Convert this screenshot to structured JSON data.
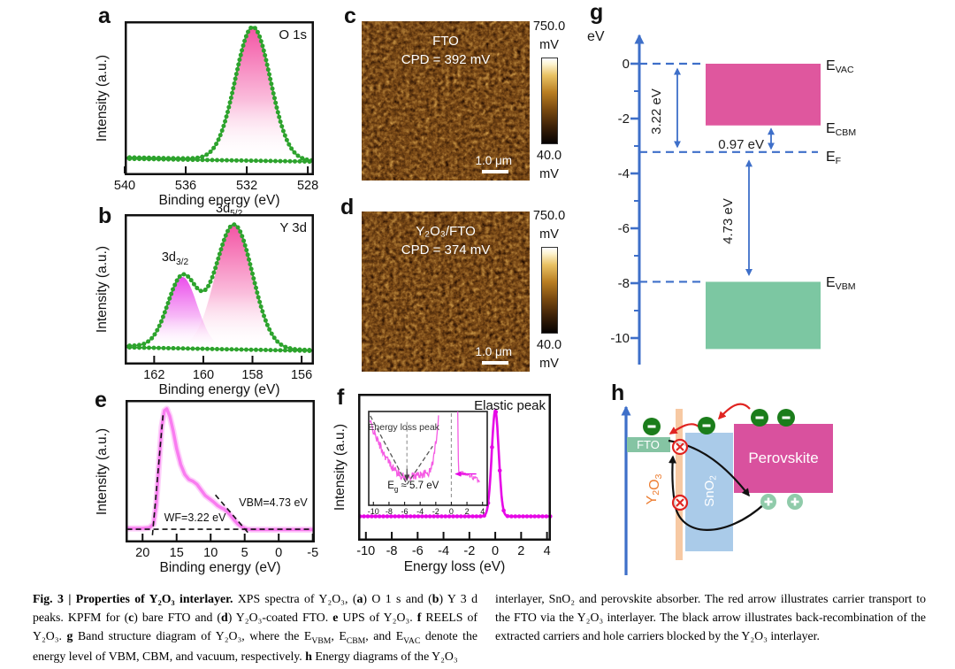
{
  "panels": {
    "a": "a",
    "b": "b",
    "c": "c",
    "d": "d",
    "e": "e",
    "f": "f",
    "g": "g",
    "h": "h"
  },
  "colors": {
    "xps_green": "#2da32d",
    "pink": "#f2459c",
    "magenta": "#e93fe9",
    "ups_pink": "#f97cf0",
    "reels_magenta": "#e607e6",
    "axis_blue": "#3e6fc9",
    "band_pink": "#df579e",
    "band_green": "#7cc7a2",
    "electron_green": "#1b7d1b",
    "hole_green": "#90cbaa",
    "sno2_blue": "#aacbe9",
    "y2o3_strip": "#f7c9a3",
    "y2o3_orange": "#ed7d31",
    "perovskite_pink": "#d9519e",
    "fto_green": "#85c4a3",
    "red": "#e02421",
    "ink": "#111111"
  },
  "chart_data": [
    {
      "id": "a",
      "type": "area",
      "panel": "a",
      "title": "O 1s",
      "xlabel": "Binding energy (eV)",
      "ylabel": "Intensity (a.u.)",
      "xticks": [
        540,
        536,
        532,
        528
      ],
      "x_range": [
        540,
        527.6
      ],
      "baseline": [
        0.055,
        0.028
      ],
      "peaks": [
        {
          "center": 531.6,
          "sigma": 1.15,
          "amp": 1.0,
          "fill": "pink"
        }
      ]
    },
    {
      "id": "b",
      "type": "area",
      "panel": "b",
      "title": "Y 3d",
      "xlabel": "Binding energy (eV)",
      "ylabel": "Intensity (a.u.)",
      "xticks": [
        162,
        160,
        158,
        156
      ],
      "x_range": [
        163.2,
        155.5
      ],
      "baseline": [
        0.065,
        0.03
      ],
      "peaks": [
        {
          "center": 160.85,
          "sigma": 0.6,
          "amp": 0.55,
          "fill": "magenta",
          "label": [
            {
              "t": "3d"
            },
            {
              "t": "3/2",
              "s": 1
            }
          ],
          "label_x": 161.15,
          "label_v": 0.7
        },
        {
          "center": 158.75,
          "sigma": 0.75,
          "amp": 0.97,
          "fill": "pink",
          "label": [
            {
              "t": "3d"
            },
            {
              "t": "5/2",
              "s": 1
            }
          ],
          "label_x": 158.95,
          "label_v": 1.08
        }
      ]
    },
    {
      "id": "e",
      "type": "line",
      "panel": "e",
      "xlabel": "Binding energy (eV)",
      "ylabel": "Intensity (a.u.)",
      "xticks": [
        20,
        15,
        10,
        5,
        0,
        -5
      ],
      "x_range": [
        22.5,
        -5.3
      ],
      "curve": [
        [
          22.5,
          0.035
        ],
        [
          20,
          0.035
        ],
        [
          19,
          0.04
        ],
        [
          18.4,
          0.07
        ],
        [
          18.0,
          0.22
        ],
        [
          17.6,
          0.55
        ],
        [
          17.2,
          0.85
        ],
        [
          16.8,
          0.985
        ],
        [
          16.45,
          1.0
        ],
        [
          16.0,
          0.94
        ],
        [
          15.5,
          0.82
        ],
        [
          15.0,
          0.68
        ],
        [
          14.4,
          0.55
        ],
        [
          13.8,
          0.47
        ],
        [
          13.2,
          0.43
        ],
        [
          12.6,
          0.415
        ],
        [
          12.0,
          0.39
        ],
        [
          11.4,
          0.345
        ],
        [
          10.8,
          0.3
        ],
        [
          10.2,
          0.275
        ],
        [
          9.6,
          0.25
        ],
        [
          9.0,
          0.22
        ],
        [
          8.4,
          0.2
        ],
        [
          8.0,
          0.19
        ],
        [
          7.5,
          0.165
        ],
        [
          7.0,
          0.135
        ],
        [
          6.5,
          0.1
        ],
        [
          6.0,
          0.07
        ],
        [
          5.5,
          0.05
        ],
        [
          5.0,
          0.035
        ],
        [
          4.6,
          0.028
        ],
        [
          4.0,
          0.025
        ],
        [
          2.0,
          0.025
        ],
        [
          0.0,
          0.025
        ],
        [
          -2.0,
          0.025
        ],
        [
          -5.3,
          0.025
        ]
      ],
      "dashes": [
        [
          [
            22.3,
            0.028
          ],
          [
            -5.2,
            0.028
          ]
        ],
        [
          [
            18.55,
            -0.02
          ],
          [
            17.0,
            0.95
          ]
        ],
        [
          [
            9.3,
            0.305
          ],
          [
            4.5,
            0.0
          ]
        ]
      ],
      "annotations": [
        {
          "text": "WF=3.22 eV",
          "x": 12.3,
          "v": 0.075
        },
        {
          "text": "VBM=4.73 eV",
          "x": 0.8,
          "v": 0.19
        }
      ]
    },
    {
      "id": "f",
      "type": "line",
      "panel": "f",
      "title": "Elastic peak",
      "xlabel": "Energy loss (eV)",
      "ylabel": "Intensity (a.u.)",
      "xticks": [
        -10,
        -8,
        -6,
        -4,
        -2,
        0,
        2,
        4
      ],
      "x_range": [
        -10.6,
        4.3
      ],
      "peak": {
        "center": 0,
        "sigma": 0.27,
        "amp": 0.8,
        "base": 0.13
      },
      "inset": {
        "xticks": [
          -10,
          -8,
          -6,
          -4,
          -2,
          0,
          2,
          4
        ],
        "x_range": [
          -10.6,
          4.6
        ],
        "label": "Energy loss peak",
        "eg_segments": [
          {
            "t": "E"
          },
          {
            "t": "g",
            "s": 1
          },
          {
            "t": " ≈ 5.7 eV"
          }
        ],
        "eg_x": -5.7
      }
    }
  ],
  "kpfm": {
    "c": {
      "panel": "c",
      "sample": "FTO",
      "cpd": "CPD = 392 mV",
      "scalebar": "1.0 μm",
      "cbar_max": "750.0",
      "cbar_min": "40.0",
      "unit": "mV"
    },
    "d": {
      "panel": "d",
      "sample": "Y₂O₃/FTO",
      "cpd": "CPD = 374 mV",
      "scalebar": "1.0 μm",
      "cbar_max": "750.0",
      "cbar_min": "40.0",
      "unit": "mV"
    }
  },
  "band_diagram": {
    "panel": "g",
    "unit": "eV",
    "yticks": [
      0,
      -2,
      -4,
      -6,
      -8,
      -10
    ],
    "levels": {
      "evac": 0,
      "ecbm": -2.25,
      "ef": -3.22,
      "evbm": -7.95,
      "vb_bottom": -10.4
    },
    "gaps": {
      "wf": "3.22 eV",
      "cbm": "0.97 eV",
      "vbm": "4.73 eV"
    },
    "labels": {
      "evac": [
        {
          "t": "E"
        },
        {
          "t": "VAC",
          "s": 1
        }
      ],
      "ecbm": [
        {
          "t": "E"
        },
        {
          "t": "CBM",
          "s": 1
        }
      ],
      "ef": [
        {
          "t": "E"
        },
        {
          "t": "F",
          "s": 1
        }
      ],
      "evbm": [
        {
          "t": "E"
        },
        {
          "t": "VBM",
          "s": 1
        }
      ]
    }
  },
  "energy_diagram": {
    "panel": "h",
    "fto": "FTO",
    "y2o3": "Y₂O₃",
    "sno2": "SnO₂",
    "perovskite": "Perovskite",
    "electron": "−",
    "hole": "+"
  },
  "caption": {
    "left": [
      {
        "t": "Fig. 3 | Properties of Y₂O₃ interlayer.",
        "b": 1
      },
      {
        "t": " XPS spectra of Y₂O₃, ("
      },
      {
        "t": "a",
        "b": 1
      },
      {
        "t": ") O 1 s and ("
      },
      {
        "t": "b",
        "b": 1
      },
      {
        "t": ") Y 3 d peaks. KPFM for ("
      },
      {
        "t": "c",
        "b": 1
      },
      {
        "t": ") bare FTO and ("
      },
      {
        "t": "d",
        "b": 1
      },
      {
        "t": ") Y₂O₃-coated FTO. "
      },
      {
        "t": "e",
        "b": 1
      },
      {
        "t": " UPS of Y₂O₃. "
      },
      {
        "t": "f",
        "b": 1
      },
      {
        "t": " REELS of Y₂O₃. "
      },
      {
        "t": "g",
        "b": 1
      },
      {
        "t": " Band structure diagram of Y₂O₃, where the E"
      },
      {
        "t": "VBM",
        "s": 1
      },
      {
        "t": ", E"
      },
      {
        "t": "CBM",
        "s": 1
      },
      {
        "t": ", and E"
      },
      {
        "t": "VAC",
        "s": 1
      },
      {
        "t": " denote the energy level of VBM, CBM, and vacuum, respectively. "
      },
      {
        "t": "h",
        "b": 1
      },
      {
        "t": " Energy diagrams of the Y₂O₃"
      }
    ],
    "right": [
      {
        "t": "interlayer, SnO₂ and perovskite absorber. The red arrow illustrates carrier transport to the FTO via the Y₂O₃ interlayer. The black arrow illustrates back-recombination of the extracted carriers and hole carriers blocked by the Y₂O₃ interlayer."
      }
    ]
  }
}
